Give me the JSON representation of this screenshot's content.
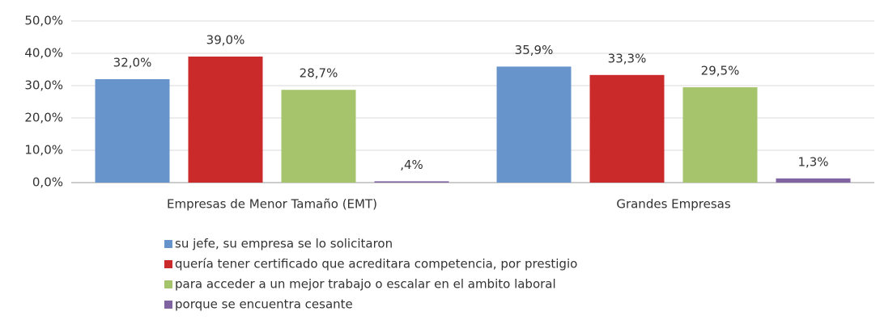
{
  "chart_data": {
    "type": "bar",
    "categories": [
      "Empresas de Menor Tamaño (EMT)",
      "Grandes Empresas"
    ],
    "series": [
      {
        "name": "su jefe, su empresa se lo solicitaron",
        "color": "#6795cb",
        "values": [
          32.0,
          35.9
        ],
        "value_labels": [
          "32,0%",
          "35,9%"
        ]
      },
      {
        "name": "quería tener certificado que acreditara competencia, por prestigio",
        "color": "#cb2a2b",
        "values": [
          39.0,
          33.3
        ],
        "value_labels": [
          "39,0%",
          "33,3%"
        ]
      },
      {
        "name": "para acceder a un mejor trabajo o escalar en el ambito laboral",
        "color": "#a5c46c",
        "values": [
          28.7,
          29.5
        ],
        "value_labels": [
          "28,7%",
          "29,5%"
        ]
      },
      {
        "name": "porque se encuentra cesante",
        "color": "#8064a2",
        "values": [
          0.4,
          1.3
        ],
        "value_labels": [
          ",4%",
          "1,3%"
        ]
      }
    ],
    "ylim": [
      0,
      50
    ],
    "yticks": [
      {
        "value": 0,
        "label": "0,0%"
      },
      {
        "value": 10,
        "label": "10,0%"
      },
      {
        "value": 20,
        "label": "20,0%"
      },
      {
        "value": 30,
        "label": "30,0%"
      },
      {
        "value": 40,
        "label": "40,0%"
      },
      {
        "value": 50,
        "label": "50,0%"
      }
    ],
    "grid": true,
    "legend": "bottom"
  }
}
